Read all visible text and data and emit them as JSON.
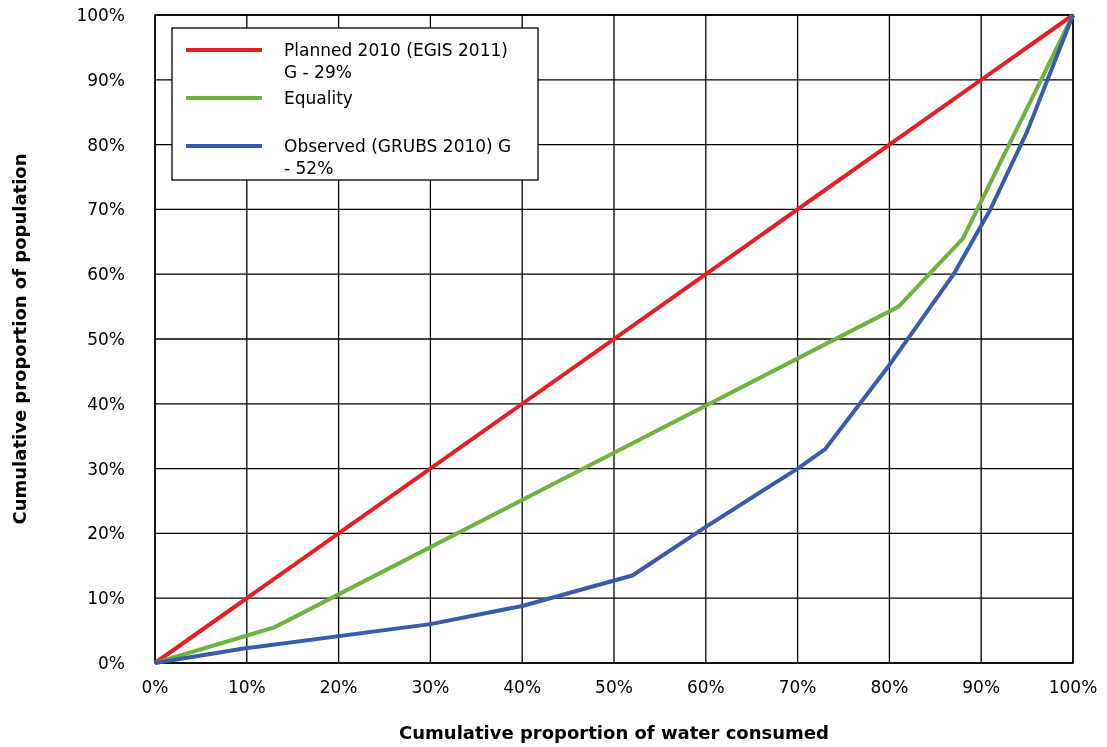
{
  "chart_data": {
    "type": "line",
    "xlabel": "Cumulative proportion of water consumed",
    "ylabel": "Cumulative proportion of population",
    "xlim": [
      0,
      100
    ],
    "ylim": [
      0,
      100
    ],
    "xticks": [
      {
        "value": 0,
        "label": "0%"
      },
      {
        "value": 10,
        "label": "10%"
      },
      {
        "value": 20,
        "label": "20%"
      },
      {
        "value": 30,
        "label": "30%"
      },
      {
        "value": 40,
        "label": "40%"
      },
      {
        "value": 50,
        "label": "50%"
      },
      {
        "value": 60,
        "label": "60%"
      },
      {
        "value": 70,
        "label": "70%"
      },
      {
        "value": 80,
        "label": "80%"
      },
      {
        "value": 90,
        "label": "90%"
      },
      {
        "value": 100,
        "label": "100%"
      }
    ],
    "yticks": [
      {
        "value": 0,
        "label": "0%"
      },
      {
        "value": 10,
        "label": "10%"
      },
      {
        "value": 20,
        "label": "20%"
      },
      {
        "value": 30,
        "label": "30%"
      },
      {
        "value": 40,
        "label": "40%"
      },
      {
        "value": 50,
        "label": "50%"
      },
      {
        "value": 60,
        "label": "60%"
      },
      {
        "value": 70,
        "label": "70%"
      },
      {
        "value": 80,
        "label": "80%"
      },
      {
        "value": 90,
        "label": "90%"
      },
      {
        "value": 100,
        "label": "100%"
      }
    ],
    "grid": true,
    "legend": "top left",
    "marker": "none",
    "line_style": "solid",
    "series": [
      {
        "name": "Planned 2010 (EGIS 2011) G - 29%",
        "color": "#e31e24",
        "x": [
          0,
          100
        ],
        "values": [
          0,
          100
        ]
      },
      {
        "name": "Equality",
        "color": "#6db33f",
        "x": [
          0,
          13,
          81,
          88,
          100
        ],
        "values": [
          0,
          5.5,
          55,
          65.5,
          100
        ]
      },
      {
        "name": "Observed  (GRUBS 2010) G - 52%",
        "color": "#3a5ba9",
        "x": [
          0,
          10,
          30,
          40,
          52,
          60,
          70,
          73,
          80,
          87,
          91,
          95,
          100
        ],
        "values": [
          0,
          2.3,
          6,
          8.8,
          13.5,
          21,
          30,
          33,
          46,
          60,
          70,
          82,
          100
        ]
      }
    ]
  }
}
